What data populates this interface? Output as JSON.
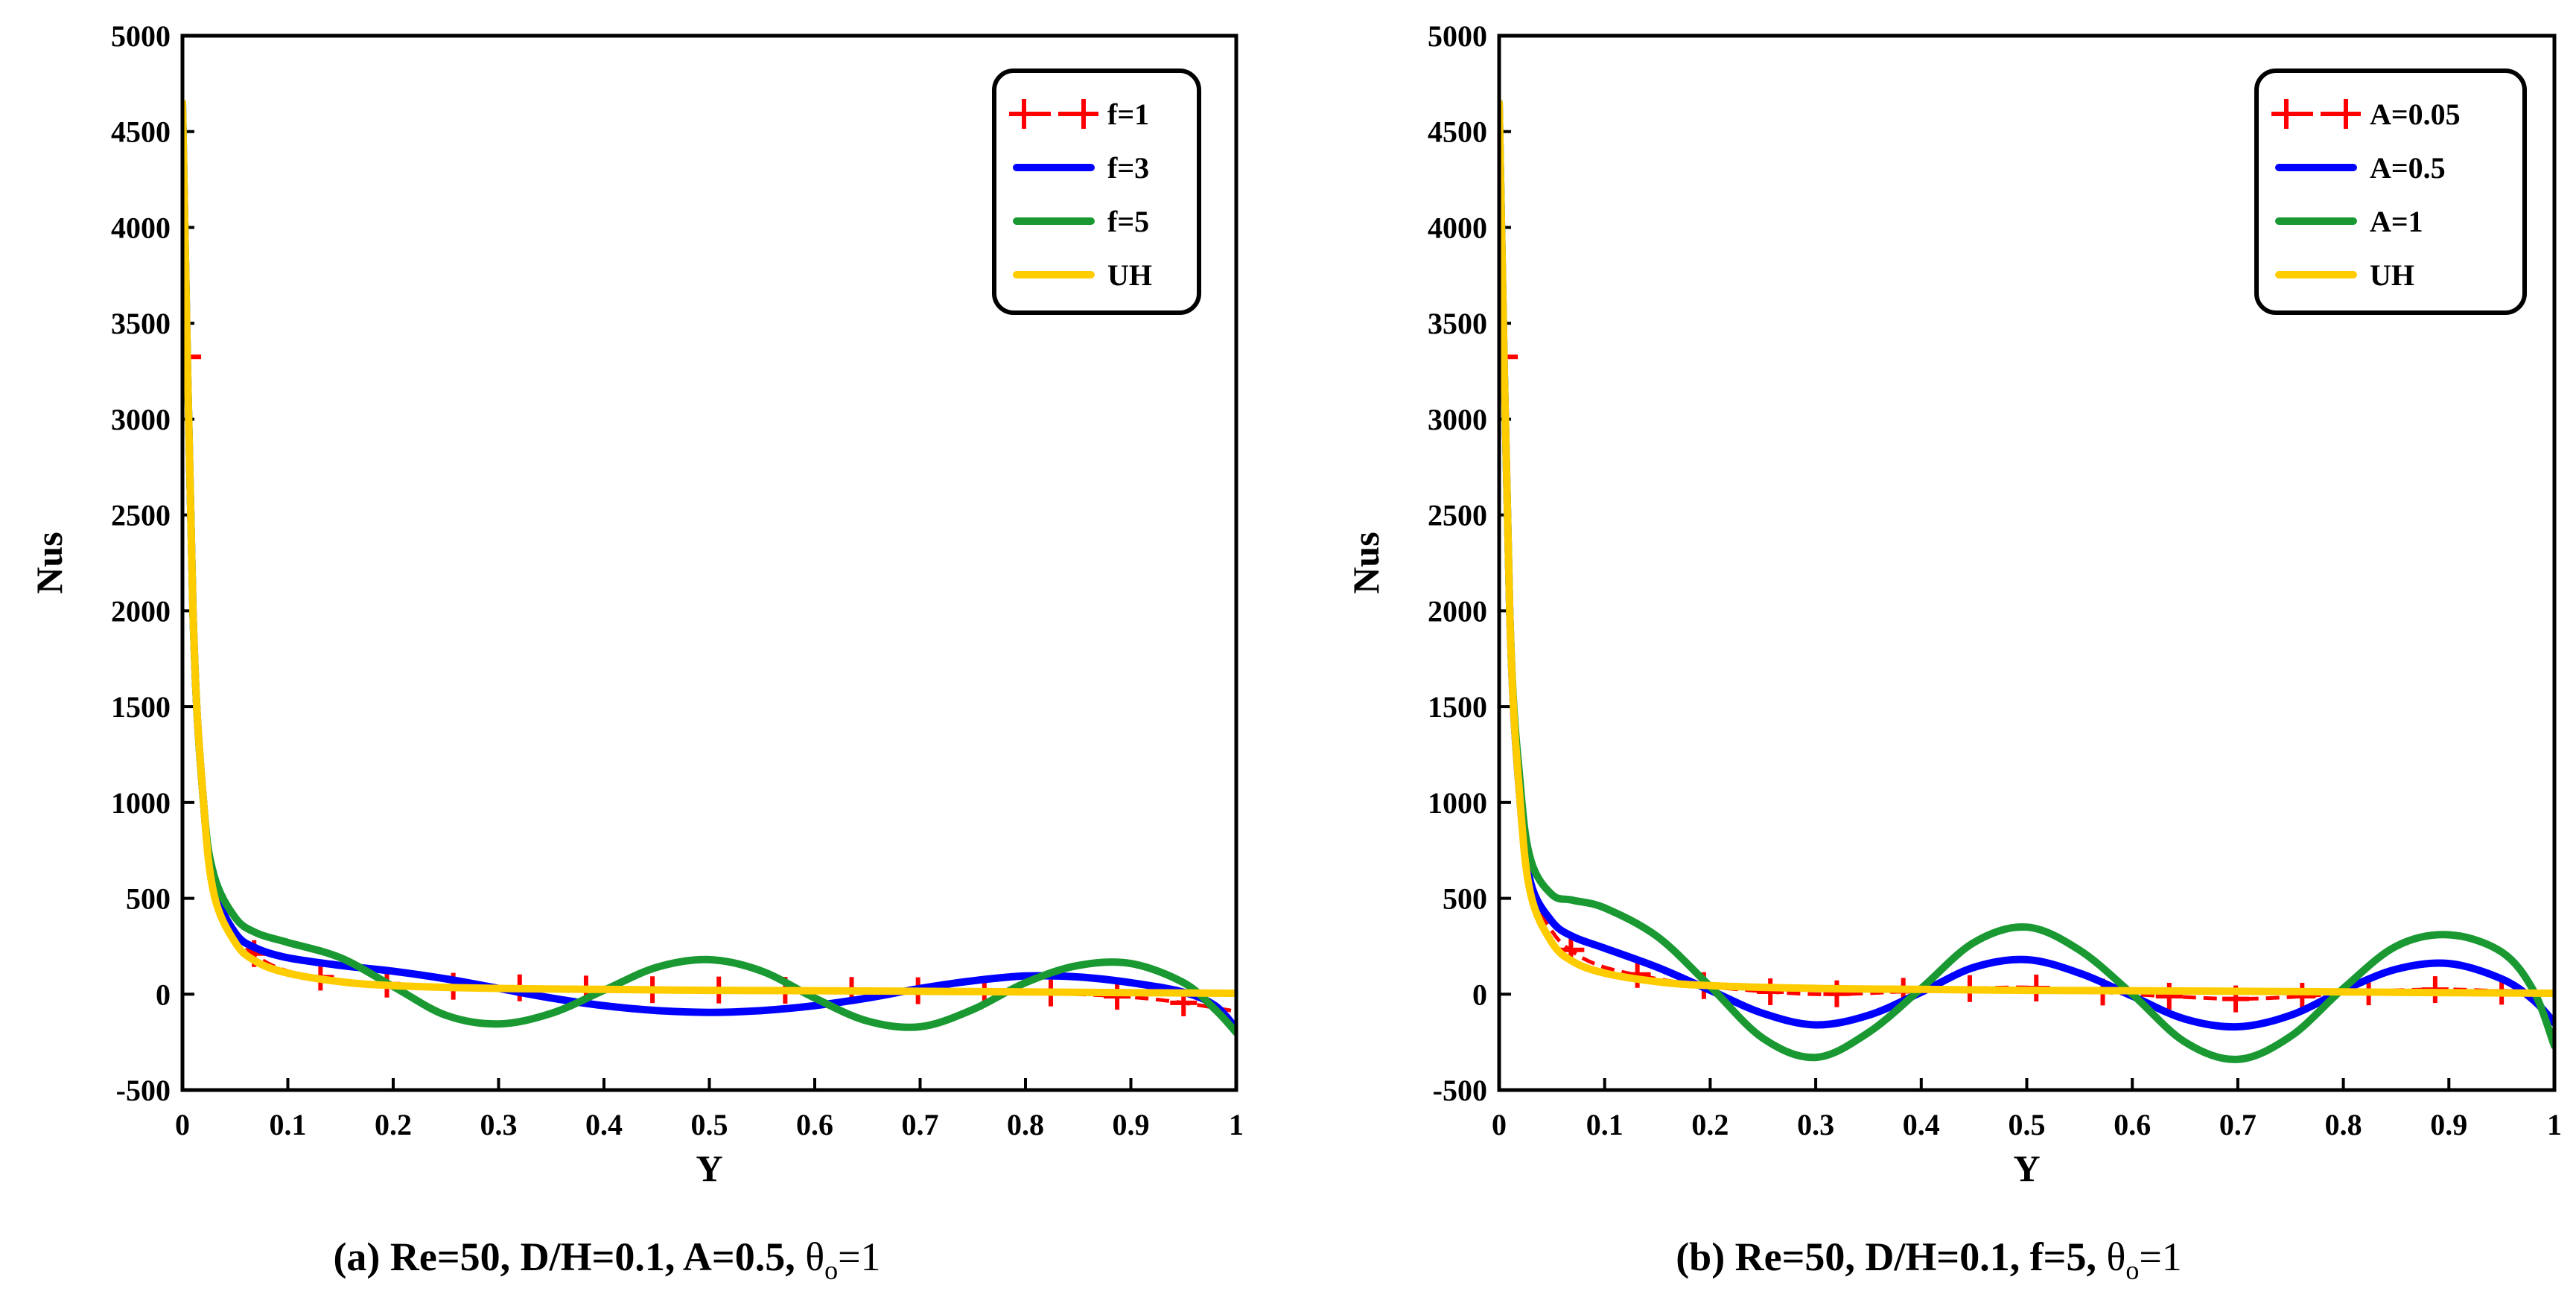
{
  "chart_data": [
    {
      "type": "line",
      "xlabel": "Y",
      "ylabel": "Nus",
      "xlim": [
        0,
        1
      ],
      "ylim": [
        -500,
        5000
      ],
      "xticks": [
        "0",
        "0.1",
        "0.2",
        "0.3",
        "0.4",
        "0.5",
        "0.6",
        "0.7",
        "0.8",
        "0.9",
        "1"
      ],
      "yticks": [
        "-500",
        "0",
        "500",
        "1000",
        "1500",
        "2000",
        "2500",
        "3000",
        "3500",
        "4000",
        "4500",
        "5000"
      ],
      "caption": {
        "prefix": "(a) Re=50, D/H=0.1, A=0.5, ",
        "symbol": "θ",
        "sub": "o",
        "suffix": "=1"
      },
      "legend_position": "top-right",
      "series": [
        {
          "name": "f=1",
          "color": "#ff0000",
          "style": "dashed-plus",
          "x": [
            0,
            0.01,
            0.02,
            0.03,
            0.05,
            0.07,
            0.1,
            0.15,
            0.2,
            0.3,
            0.4,
            0.5,
            0.6,
            0.7,
            0.8,
            0.85,
            0.9,
            0.95,
            1.0
          ],
          "y": [
            4650,
            2000,
            1000,
            560,
            320,
            200,
            120,
            70,
            50,
            35,
            25,
            22,
            20,
            18,
            12,
            0,
            -15,
            -45,
            -90
          ]
        },
        {
          "name": "f=3",
          "color": "#0000ff",
          "style": "solid",
          "x": [
            0,
            0.01,
            0.02,
            0.03,
            0.05,
            0.07,
            0.1,
            0.15,
            0.2,
            0.25,
            0.3,
            0.35,
            0.4,
            0.45,
            0.5,
            0.55,
            0.6,
            0.65,
            0.7,
            0.75,
            0.8,
            0.85,
            0.9,
            0.95,
            0.98,
            1.0
          ],
          "y": [
            4650,
            2000,
            1000,
            560,
            320,
            240,
            190,
            150,
            120,
            80,
            30,
            -20,
            -60,
            -85,
            -95,
            -85,
            -60,
            -20,
            30,
            70,
            95,
            90,
            60,
            10,
            -60,
            -180
          ]
        },
        {
          "name": "f=5",
          "color": "#1a9932",
          "style": "solid",
          "x": [
            0,
            0.01,
            0.02,
            0.03,
            0.05,
            0.07,
            0.1,
            0.15,
            0.2,
            0.25,
            0.3,
            0.35,
            0.4,
            0.45,
            0.5,
            0.55,
            0.6,
            0.65,
            0.7,
            0.75,
            0.8,
            0.85,
            0.9,
            0.95,
            0.98,
            1.0
          ],
          "y": [
            4650,
            2000,
            1000,
            620,
            400,
            320,
            270,
            190,
            40,
            -110,
            -155,
            -100,
            20,
            140,
            180,
            120,
            -20,
            -140,
            -170,
            -80,
            60,
            150,
            160,
            60,
            -80,
            -200
          ]
        },
        {
          "name": "UH",
          "color": "#ffcc00",
          "style": "solid",
          "x": [
            0,
            0.01,
            0.02,
            0.03,
            0.05,
            0.07,
            0.1,
            0.15,
            0.2,
            0.3,
            0.4,
            0.5,
            0.6,
            0.7,
            0.8,
            0.9,
            1.0
          ],
          "y": [
            4650,
            2000,
            1000,
            520,
            270,
            170,
            110,
            65,
            45,
            30,
            25,
            20,
            18,
            15,
            12,
            8,
            5
          ]
        }
      ]
    },
    {
      "type": "line",
      "xlabel": "Y",
      "ylabel": "Nus",
      "xlim": [
        0,
        1
      ],
      "ylim": [
        -500,
        5000
      ],
      "xticks": [
        "0",
        "0.1",
        "0.2",
        "0.3",
        "0.4",
        "0.5",
        "0.6",
        "0.7",
        "0.8",
        "0.9",
        "1"
      ],
      "yticks": [
        "-500",
        "0",
        "500",
        "1000",
        "1500",
        "2000",
        "2500",
        "3000",
        "3500",
        "4000",
        "4500",
        "5000"
      ],
      "caption": {
        "prefix": "(b) Re=50, D/H=0.1, f=5, ",
        "symbol": "θ",
        "sub": "o",
        "suffix": "=1"
      },
      "legend_position": "top-right",
      "series": [
        {
          "name": "A=0.05",
          "color": "#ff0000",
          "style": "dashed-plus",
          "x": [
            0,
            0.01,
            0.02,
            0.03,
            0.05,
            0.07,
            0.1,
            0.15,
            0.2,
            0.25,
            0.3,
            0.35,
            0.4,
            0.45,
            0.5,
            0.55,
            0.6,
            0.65,
            0.7,
            0.75,
            0.8,
            0.85,
            0.9,
            0.95,
            1.0
          ],
          "y": [
            4650,
            2000,
            1000,
            560,
            330,
            220,
            140,
            80,
            40,
            15,
            0,
            5,
            20,
            30,
            35,
            20,
            0,
            -15,
            -25,
            -15,
            5,
            20,
            25,
            15,
            0
          ]
        },
        {
          "name": "A=0.5",
          "color": "#0000ff",
          "style": "solid",
          "x": [
            0,
            0.01,
            0.02,
            0.03,
            0.05,
            0.07,
            0.1,
            0.15,
            0.2,
            0.25,
            0.3,
            0.35,
            0.4,
            0.45,
            0.5,
            0.55,
            0.6,
            0.65,
            0.7,
            0.75,
            0.8,
            0.85,
            0.9,
            0.95,
            0.98,
            1.0
          ],
          "y": [
            4650,
            2000,
            1000,
            580,
            380,
            300,
            240,
            140,
            20,
            -100,
            -160,
            -110,
            10,
            140,
            180,
            110,
            -10,
            -130,
            -170,
            -110,
            20,
            130,
            160,
            80,
            -30,
            -150
          ]
        },
        {
          "name": "A=1",
          "color": "#1a9932",
          "style": "solid",
          "x": [
            0,
            0.01,
            0.02,
            0.03,
            0.05,
            0.07,
            0.1,
            0.15,
            0.2,
            0.25,
            0.3,
            0.35,
            0.4,
            0.45,
            0.5,
            0.55,
            0.6,
            0.65,
            0.7,
            0.75,
            0.8,
            0.85,
            0.9,
            0.95,
            0.98,
            1.0
          ],
          "y": [
            4650,
            2000,
            1100,
            700,
            520,
            490,
            450,
            300,
            40,
            -230,
            -330,
            -200,
            30,
            270,
            350,
            230,
            0,
            -250,
            -340,
            -220,
            30,
            250,
            310,
            220,
            20,
            -270
          ]
        },
        {
          "name": "UH",
          "color": "#ffcc00",
          "style": "solid",
          "x": [
            0,
            0.01,
            0.02,
            0.03,
            0.05,
            0.07,
            0.1,
            0.15,
            0.2,
            0.3,
            0.4,
            0.5,
            0.6,
            0.7,
            0.8,
            0.9,
            1.0
          ],
          "y": [
            4650,
            2000,
            1000,
            520,
            270,
            170,
            110,
            65,
            45,
            30,
            25,
            20,
            18,
            15,
            12,
            8,
            5
          ]
        }
      ]
    }
  ]
}
